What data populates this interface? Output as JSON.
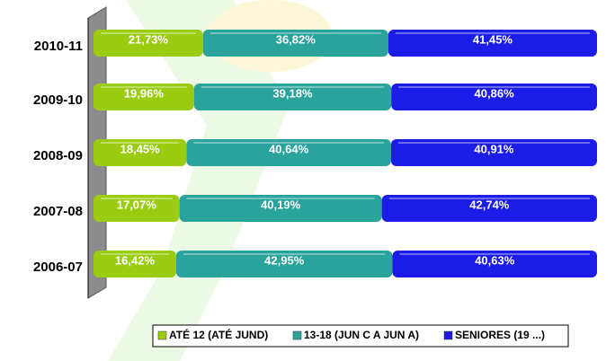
{
  "chart_data": {
    "type": "stacked-bar-horizontal",
    "categories": [
      "2010-11",
      "2009-10",
      "2008-09",
      "2007-08",
      "2006-07"
    ],
    "xlim": [
      0,
      100
    ],
    "series": [
      {
        "name": "ATÉ 12 (ATÉ JUND)",
        "color": "#9ccc12",
        "values": [
          21.73,
          19.96,
          18.45,
          17.07,
          16.42
        ],
        "value_labels": [
          "21,73%",
          "19,96%",
          "18,45%",
          "17,07%",
          "16,42%"
        ]
      },
      {
        "name": "13-18 (JUN C A JUN A)",
        "color": "#2aa39c",
        "values": [
          36.82,
          39.18,
          40.64,
          40.19,
          42.95
        ],
        "value_labels": [
          "36,82%",
          "39,18%",
          "40,64%",
          "40,19%",
          "42,95%"
        ]
      },
      {
        "name": "SENIORES (19 ...)",
        "color": "#1c1ce8",
        "values": [
          41.45,
          40.86,
          40.91,
          42.74,
          40.63
        ],
        "value_labels": [
          "41,45%",
          "40,86%",
          "40,91%",
          "42,74%",
          "40,63%"
        ]
      }
    ]
  }
}
